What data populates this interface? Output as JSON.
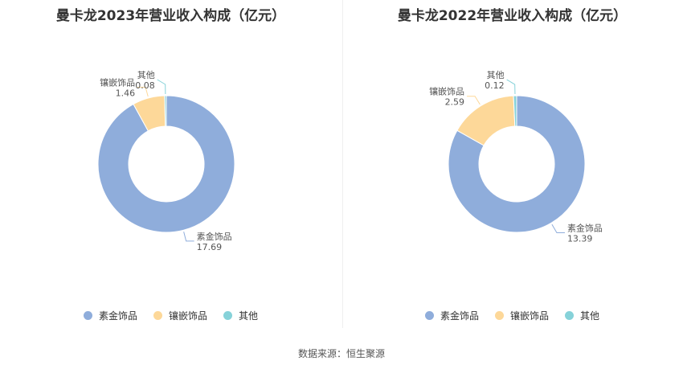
{
  "chart_data": [
    {
      "type": "pie",
      "title": "曼卡龙2023年营业收入构成（亿元）",
      "categories": [
        "素金饰品",
        "镶嵌饰品",
        "其他"
      ],
      "values": [
        17.69,
        1.46,
        0.08
      ],
      "value_labels": [
        "17.69",
        "1.46",
        "0.08"
      ],
      "donut": true,
      "legend": "bottom"
    },
    {
      "type": "pie",
      "title": "曼卡龙2022年营业收入构成（亿元）",
      "categories": [
        "素金饰品",
        "镶嵌饰品",
        "其他"
      ],
      "values": [
        13.39,
        2.59,
        0.12
      ],
      "value_labels": [
        "13.39",
        "2.59",
        "0.12"
      ],
      "donut": true,
      "legend": "bottom"
    }
  ],
  "colors": [
    "#8FADDB",
    "#FDD899",
    "#86D2D9"
  ],
  "source": "数据来源：恒生聚源"
}
